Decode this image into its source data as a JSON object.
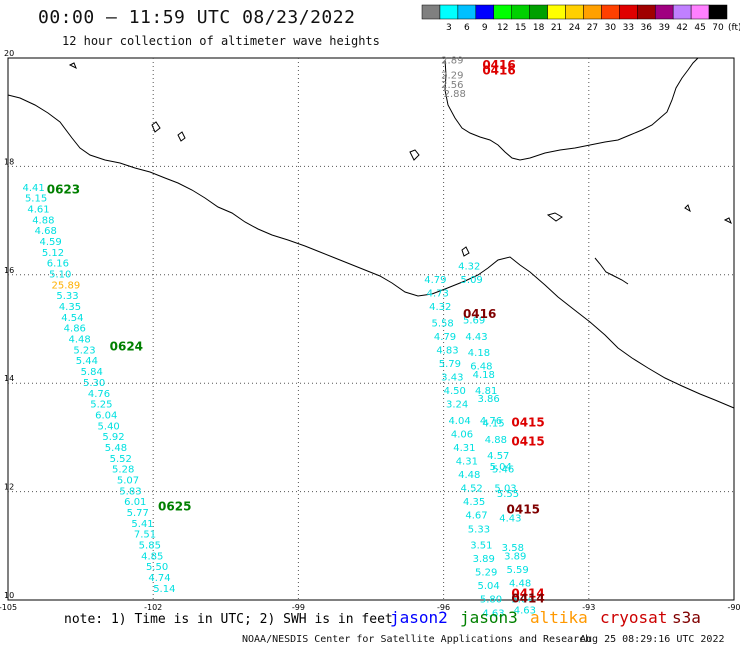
{
  "header": {
    "title": "00:00 – 11:59 UTC 08/23/2022",
    "subtitle": "12 hour collection of altimeter wave heights"
  },
  "colorbar": {
    "unit_label": "(ft)",
    "bins": [
      {
        "label": "",
        "color": "#808080"
      },
      {
        "label": "3",
        "color": "#00ffff"
      },
      {
        "label": "6",
        "color": "#00c0ff"
      },
      {
        "label": "9",
        "color": "#0000ff"
      },
      {
        "label": "12",
        "color": "#00ff00"
      },
      {
        "label": "15",
        "color": "#00d000"
      },
      {
        "label": "18",
        "color": "#00a000"
      },
      {
        "label": "21",
        "color": "#ffff00"
      },
      {
        "label": "24",
        "color": "#ffd000"
      },
      {
        "label": "27",
        "color": "#ffa000"
      },
      {
        "label": "30",
        "color": "#ff4000"
      },
      {
        "label": "33",
        "color": "#e00000"
      },
      {
        "label": "36",
        "color": "#a00000"
      },
      {
        "label": "39",
        "color": "#a00080"
      },
      {
        "label": "42",
        "color": "#c080ff"
      },
      {
        "label": "45",
        "color": "#ff80ff"
      },
      {
        "label": "70",
        "color": "#000000"
      }
    ]
  },
  "map": {
    "lon_range": [
      -105,
      -90
    ],
    "lat_range": [
      10,
      20
    ],
    "lon_ticks": [
      "-105",
      "-102",
      "-99",
      "-96",
      "-93",
      "-90"
    ],
    "lat_ticks": [
      "20",
      "18",
      "16",
      "14",
      "12",
      "10"
    ],
    "track_labels": [
      {
        "text": "0623",
        "lon": -104.2,
        "lat": 17.5,
        "color": "#008000"
      },
      {
        "text": "0624",
        "lon": -102.9,
        "lat": 14.6,
        "color": "#008000"
      },
      {
        "text": "0625",
        "lon": -101.9,
        "lat": 11.65,
        "color": "#008000"
      },
      {
        "text": "0416",
        "lon": -95.2,
        "lat": 19.8,
        "color": "#dd0000"
      },
      {
        "text": "0416",
        "lon": -95.2,
        "lat": 19.7,
        "color": "#dd0000"
      },
      {
        "text": "0416",
        "lon": -95.6,
        "lat": 15.2,
        "color": "#800000"
      },
      {
        "text": "0415",
        "lon": -94.6,
        "lat": 13.2,
        "color": "#dd0000"
      },
      {
        "text": "0415",
        "lon": -94.6,
        "lat": 12.85,
        "color": "#dd0000"
      },
      {
        "text": "0415",
        "lon": -94.7,
        "lat": 11.6,
        "color": "#800000"
      },
      {
        "text": "0414",
        "lon": -94.6,
        "lat": 10.05,
        "color": "#dd0000"
      },
      {
        "text": "0414",
        "lon": -94.6,
        "lat": 9.95,
        "color": "#800000"
      }
    ],
    "tracks": [
      {
        "color": "#00e0e0",
        "points": [
          {
            "lon": -104.7,
            "lat": 17.55,
            "v": "4.41"
          },
          {
            "lon": -104.65,
            "lat": 17.35,
            "v": "5.15"
          },
          {
            "lon": -104.6,
            "lat": 17.15,
            "v": "4.61"
          },
          {
            "lon": -104.5,
            "lat": 16.95,
            "v": "4.88"
          },
          {
            "lon": -104.45,
            "lat": 16.75,
            "v": "4.68"
          },
          {
            "lon": -104.35,
            "lat": 16.55,
            "v": "4.59"
          },
          {
            "lon": -104.3,
            "lat": 16.35,
            "v": "5.12"
          },
          {
            "lon": -104.2,
            "lat": 16.15,
            "v": "6.16"
          },
          {
            "lon": -104.15,
            "lat": 15.95,
            "v": "5.10"
          },
          {
            "lon": -104.1,
            "lat": 15.75,
            "v": "25.89",
            "c": "#ffb000"
          },
          {
            "lon": -104.0,
            "lat": 15.55,
            "v": "5.33"
          },
          {
            "lon": -103.95,
            "lat": 15.35,
            "v": "4.35"
          },
          {
            "lon": -103.9,
            "lat": 15.15,
            "v": "4.54"
          },
          {
            "lon": -103.85,
            "lat": 14.95,
            "v": "4.86"
          },
          {
            "lon": -103.75,
            "lat": 14.75,
            "v": "4.48"
          },
          {
            "lon": -103.65,
            "lat": 14.55,
            "v": "5.23"
          },
          {
            "lon": -103.6,
            "lat": 14.35,
            "v": "5.44"
          },
          {
            "lon": -103.5,
            "lat": 14.15,
            "v": "5.84"
          },
          {
            "lon": -103.45,
            "lat": 13.95,
            "v": "5.30"
          },
          {
            "lon": -103.35,
            "lat": 13.75,
            "v": "4.76"
          },
          {
            "lon": -103.3,
            "lat": 13.55,
            "v": "5.25"
          },
          {
            "lon": -103.2,
            "lat": 13.35,
            "v": "6.04"
          },
          {
            "lon": -103.15,
            "lat": 13.15,
            "v": "5.40"
          },
          {
            "lon": -103.05,
            "lat": 12.95,
            "v": "5.92"
          },
          {
            "lon": -103.0,
            "lat": 12.75,
            "v": "5.48"
          },
          {
            "lon": -102.9,
            "lat": 12.55,
            "v": "5.52"
          },
          {
            "lon": -102.85,
            "lat": 12.35,
            "v": "5.28"
          },
          {
            "lon": -102.75,
            "lat": 12.15,
            "v": "5.07"
          },
          {
            "lon": -102.7,
            "lat": 11.95,
            "v": "5.83"
          },
          {
            "lon": -102.6,
            "lat": 11.75,
            "v": "6.01"
          },
          {
            "lon": -102.55,
            "lat": 11.55,
            "v": "5.77"
          },
          {
            "lon": -102.45,
            "lat": 11.35,
            "v": "5.41"
          },
          {
            "lon": -102.4,
            "lat": 11.15,
            "v": "7.51"
          },
          {
            "lon": -102.3,
            "lat": 10.95,
            "v": "5.85"
          },
          {
            "lon": -102.25,
            "lat": 10.75,
            "v": "4.85"
          },
          {
            "lon": -102.15,
            "lat": 10.55,
            "v": "5.50"
          },
          {
            "lon": -102.1,
            "lat": 10.35,
            "v": "4.74"
          },
          {
            "lon": -102.0,
            "lat": 10.15,
            "v": "5.14"
          }
        ]
      },
      {
        "color": "#808080",
        "points": [
          {
            "lon": -96.05,
            "lat": 19.9,
            "v": "2.89"
          },
          {
            "lon": -96.05,
            "lat": 19.62,
            "v": "2.29"
          },
          {
            "lon": -96.05,
            "lat": 19.45,
            "v": "2.56"
          },
          {
            "lon": -96.0,
            "lat": 19.28,
            "v": "2.88"
          }
        ]
      },
      {
        "color": "#00e0e0",
        "points": [
          {
            "lon": -96.4,
            "lat": 15.85,
            "v": "4.79"
          },
          {
            "lon": -96.35,
            "lat": 15.6,
            "v": "4.73"
          },
          {
            "lon": -96.3,
            "lat": 15.35,
            "v": "4.32"
          },
          {
            "lon": -96.25,
            "lat": 15.05,
            "v": "5.58"
          },
          {
            "lon": -96.2,
            "lat": 14.8,
            "v": "4.79"
          },
          {
            "lon": -96.15,
            "lat": 14.55,
            "v": "4.83"
          },
          {
            "lon": -96.1,
            "lat": 14.3,
            "v": "5.79"
          },
          {
            "lon": -96.05,
            "lat": 14.05,
            "v": "3.43"
          },
          {
            "lon": -96.0,
            "lat": 13.8,
            "v": "4.50"
          },
          {
            "lon": -95.95,
            "lat": 13.55,
            "v": "3.24"
          },
          {
            "lon": -95.9,
            "lat": 13.25,
            "v": "4.04"
          },
          {
            "lon": -95.85,
            "lat": 13.0,
            "v": "4.06"
          },
          {
            "lon": -95.8,
            "lat": 12.75,
            "v": "4.31"
          },
          {
            "lon": -95.75,
            "lat": 12.5,
            "v": "4.31"
          },
          {
            "lon": -95.7,
            "lat": 12.25,
            "v": "4.48"
          },
          {
            "lon": -95.65,
            "lat": 12.0,
            "v": "4.52"
          },
          {
            "lon": -95.6,
            "lat": 11.75,
            "v": "4.35"
          },
          {
            "lon": -95.55,
            "lat": 11.5,
            "v": "4.67"
          },
          {
            "lon": -95.5,
            "lat": 11.25,
            "v": "5.33"
          },
          {
            "lon": -95.45,
            "lat": 10.95,
            "v": "3.51"
          },
          {
            "lon": -95.4,
            "lat": 10.7,
            "v": "3.89"
          },
          {
            "lon": -95.35,
            "lat": 10.45,
            "v": "5.29"
          },
          {
            "lon": -95.3,
            "lat": 10.2,
            "v": "5.04"
          },
          {
            "lon": -95.25,
            "lat": 9.95,
            "v": "5.80"
          },
          {
            "lon": -95.2,
            "lat": 9.7,
            "v": "4.63"
          }
        ]
      },
      {
        "color": "#00e0e0",
        "points": [
          {
            "lon": -95.7,
            "lat": 16.1,
            "v": "4.32"
          },
          {
            "lon": -95.65,
            "lat": 15.85,
            "v": "5.09"
          },
          {
            "lon": -95.6,
            "lat": 15.1,
            "v": "5.69"
          },
          {
            "lon": -95.55,
            "lat": 14.8,
            "v": "4.43"
          },
          {
            "lon": -95.5,
            "lat": 14.5,
            "v": "4.18"
          },
          {
            "lon": -95.45,
            "lat": 14.25,
            "v": "6.48"
          },
          {
            "lon": -95.4,
            "lat": 14.1,
            "v": "4.18"
          },
          {
            "lon": -95.35,
            "lat": 13.8,
            "v": "4.81"
          },
          {
            "lon": -95.3,
            "lat": 13.65,
            "v": "3.86"
          },
          {
            "lon": -95.25,
            "lat": 13.25,
            "v": "4.76"
          },
          {
            "lon": -95.2,
            "lat": 13.2,
            "v": "4.15"
          },
          {
            "lon": -95.15,
            "lat": 12.9,
            "v": "4.88"
          },
          {
            "lon": -95.1,
            "lat": 12.6,
            "v": "4.57"
          },
          {
            "lon": -95.05,
            "lat": 12.4,
            "v": "5.04"
          },
          {
            "lon": -95.0,
            "lat": 12.35,
            "v": "5.46"
          },
          {
            "lon": -94.95,
            "lat": 12.0,
            "v": "5.03"
          },
          {
            "lon": -94.9,
            "lat": 11.9,
            "v": "5.55"
          },
          {
            "lon": -94.85,
            "lat": 11.45,
            "v": "4.43"
          },
          {
            "lon": -94.8,
            "lat": 10.9,
            "v": "3.58"
          },
          {
            "lon": -94.75,
            "lat": 10.75,
            "v": "3.89"
          },
          {
            "lon": -94.7,
            "lat": 10.5,
            "v": "5.59"
          },
          {
            "lon": -94.65,
            "lat": 10.25,
            "v": "4.48"
          },
          {
            "lon": -94.6,
            "lat": 9.95,
            "v": "5.04"
          },
          {
            "lon": -94.55,
            "lat": 9.75,
            "v": "4.63"
          }
        ]
      }
    ]
  },
  "footer": {
    "note": "note: 1) Time is in UTC; 2) SWH is in feet",
    "satellites": [
      {
        "label": "jason2",
        "color": "#0000ff"
      },
      {
        "label": "jason3",
        "color": "#008000"
      },
      {
        "label": "altika",
        "color": "#ff9900"
      },
      {
        "label": "cryosat",
        "color": "#cc0000"
      },
      {
        "label": "s3a",
        "color": "#800000"
      }
    ],
    "credit": "NOAA/NESDIS Center for Satellite Applications and Research",
    "timestamp": "Aug 25 08:29:16 UTC 2022"
  }
}
